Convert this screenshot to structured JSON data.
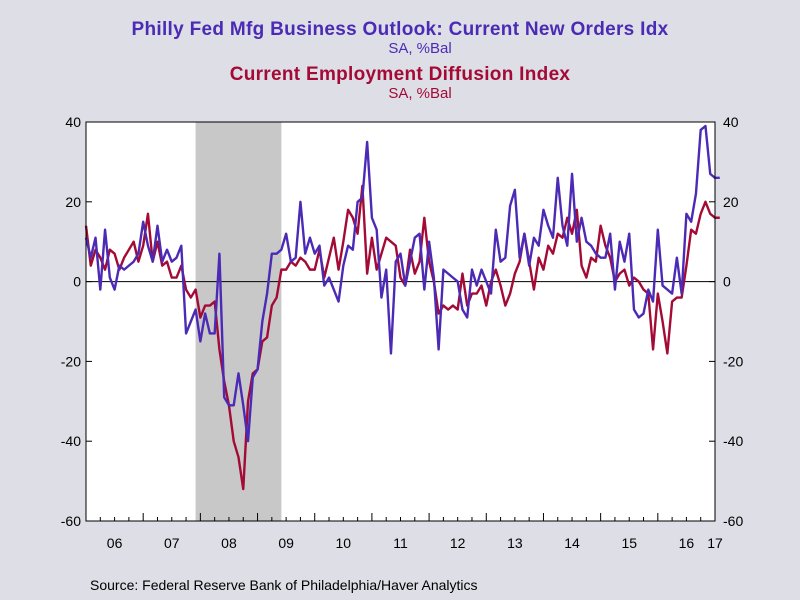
{
  "title_line1": "Philly Fed Mfg Business Outlook: Current New Orders Idx",
  "subtitle_line1": "SA, %Bal",
  "title_line2": "Current Employment Diffusion Index",
  "subtitle_line2": "SA, %Bal",
  "source": "Source:  Federal Reserve Bank of Philadelphia/Haver Analytics",
  "colors": {
    "new_orders": "#4b2bb5",
    "employment": "#a30a35",
    "recession": "#c8c8c8"
  },
  "chart_data": {
    "type": "line",
    "title": "Philly Fed Mfg Business Outlook: Current New Orders Idx / Current Employment Diffusion Index",
    "units": "SA, %Bal",
    "x_tick_labels": [
      "06",
      "07",
      "08",
      "09",
      "10",
      "11",
      "12",
      "13",
      "14",
      "15",
      "16",
      "17"
    ],
    "x_range": [
      "2006-01",
      "2017-01"
    ],
    "ylim": [
      -60,
      40
    ],
    "y_ticks": [
      -60,
      -40,
      -20,
      0,
      20,
      40
    ],
    "zero_line": true,
    "grid": false,
    "recession_shading": {
      "start": "2007-12",
      "end": "2009-06"
    },
    "series": [
      {
        "name": "Current New Orders Idx",
        "color": "#4b2bb5",
        "start": "2006-01",
        "frequency": "monthly",
        "values": [
          11,
          6,
          11,
          -2,
          13,
          1,
          -2,
          4,
          3,
          4,
          5,
          7,
          15,
          9,
          5,
          14,
          5,
          8,
          5,
          6,
          9,
          -13,
          -10,
          -7,
          -15,
          -8,
          -13,
          -13,
          7,
          -29,
          -31,
          -31,
          -23,
          -31,
          -40,
          -24,
          -22,
          -10,
          -3,
          7,
          7,
          8,
          12,
          5,
          6,
          20,
          7,
          11,
          7,
          9,
          -1,
          1,
          -2,
          -5,
          4,
          9,
          8,
          20,
          21,
          35,
          16,
          13,
          -4,
          3,
          -18,
          5,
          7,
          -1,
          5,
          11,
          12,
          -2,
          10,
          1,
          -17,
          3,
          2,
          1,
          0,
          -7,
          -9,
          3,
          -1,
          3,
          0,
          -3,
          13,
          5,
          6,
          19,
          23,
          6,
          12,
          4,
          11,
          9,
          18,
          14,
          11,
          26,
          14,
          9,
          27,
          10,
          16,
          10,
          9,
          7,
          6,
          6,
          12,
          -2,
          10,
          5,
          12,
          -7,
          -9,
          -8,
          -2,
          -5,
          13,
          -1,
          -2,
          -3,
          6,
          -3,
          17,
          15,
          22,
          38,
          39,
          27,
          26,
          26
        ]
      },
      {
        "name": "Current Employment Diffusion Index",
        "color": "#a30a35",
        "start": "2006-01",
        "frequency": "monthly",
        "values": [
          14,
          4,
          8,
          6,
          3,
          8,
          7,
          3,
          6,
          8,
          10,
          5,
          9,
          17,
          5,
          10,
          4,
          5,
          1,
          1,
          4,
          -2,
          -4,
          -2,
          -9,
          -6,
          -6,
          -5,
          -17,
          -25,
          -31,
          -40,
          -44,
          -52,
          -30,
          -23,
          -22,
          -15,
          -14,
          -6,
          -4,
          3,
          3,
          5,
          4,
          6,
          5,
          3,
          3,
          8,
          1,
          6,
          11,
          3,
          10,
          18,
          16,
          12,
          24,
          2,
          11,
          3,
          7,
          11,
          10,
          9,
          1,
          -1,
          8,
          2,
          5,
          16,
          5,
          0,
          -8,
          -6,
          -7,
          -6,
          -7,
          2,
          -6,
          -3,
          -3,
          -1,
          -6,
          0,
          3,
          -1,
          -6,
          -3,
          2,
          5,
          12,
          5,
          -2,
          6,
          3,
          9,
          7,
          12,
          11,
          16,
          12,
          18,
          4,
          1,
          6,
          5,
          14,
          9,
          6,
          0,
          2,
          3,
          -1,
          1,
          0,
          -2,
          -3,
          -17,
          -3,
          -10,
          -18,
          -5,
          -4,
          -4,
          4,
          13,
          12,
          17,
          20,
          17,
          16,
          16
        ]
      }
    ]
  }
}
